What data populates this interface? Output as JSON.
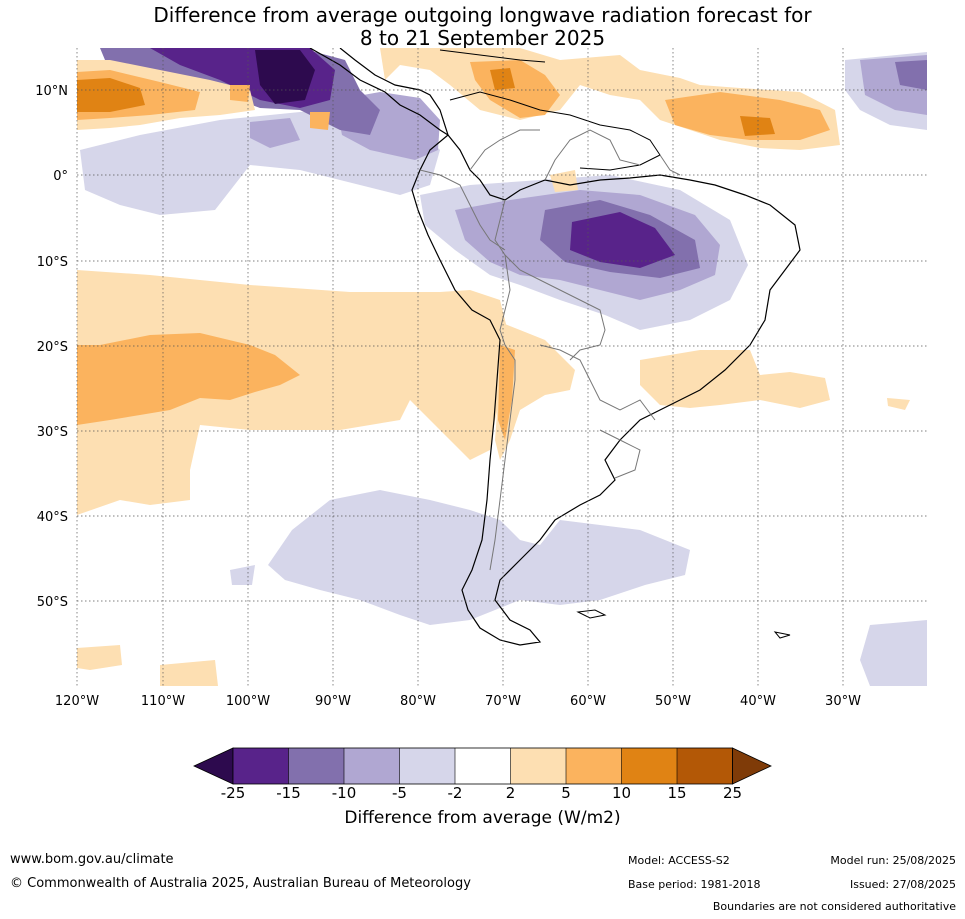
{
  "title_line1": "Difference from average outgoing longwave radiation forecast for",
  "title_line2": "8 to 21 September 2025",
  "lon_labels": [
    "120°W",
    "110°W",
    "100°W",
    "90°W",
    "80°W",
    "70°W",
    "60°W",
    "50°W",
    "40°W",
    "30°W"
  ],
  "lat_labels": [
    "10°N",
    "0°",
    "10°S",
    "20°S",
    "30°S",
    "40°S",
    "50°S"
  ],
  "colorbar": {
    "ticks": [
      "-25",
      "-15",
      "-10",
      "-5",
      "-2",
      "2",
      "5",
      "10",
      "15",
      "25"
    ],
    "colors": {
      "lt_-25": "#2d0a4e",
      "-25_-15": "#58238a",
      "-15_-10": "#8270ad",
      "-10_-5": "#b0a7d2",
      "-5_-2": "#d6d6ea",
      "-2_2": "#ffffff",
      "2_5": "#fddfb2",
      "5_10": "#fbb35e",
      "10_15": "#e08314",
      "15_25": "#b35806",
      "gt_25": "#7f3b08"
    },
    "label": "Difference from average (W/m2)"
  },
  "footer": {
    "website": "www.bom.gov.au/climate",
    "copyright": "© Commonwealth of Australia 2025, Australian Bureau of Meteorology",
    "model": "Model: ACCESS-S2",
    "model_run": "Model run: 25/08/2025",
    "base_period": "Base period: 1981-2018",
    "issued": "Issued: 27/08/2025",
    "boundaries_note": "Boundaries are not considered authoritative"
  }
}
